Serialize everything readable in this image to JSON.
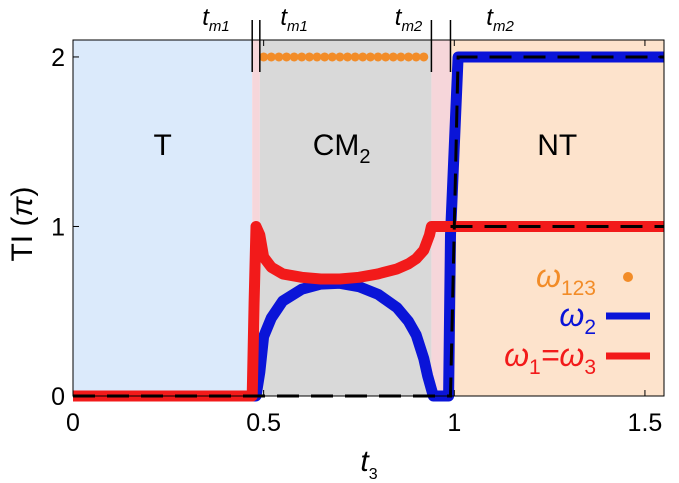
{
  "chart_data": {
    "type": "line",
    "title": "",
    "xlabel": "t",
    "xlabel_sub": "3",
    "ylabel": "TI (",
    "ylabel_sym": "π",
    "ylabel_close": ")",
    "xlim": [
      0,
      1.55
    ],
    "ylim": [
      0,
      2.1
    ],
    "x_ticks": [
      0,
      0.5,
      1,
      1.5
    ],
    "x_tick_labels": [
      "0",
      "0.5",
      "1",
      "1.5"
    ],
    "y_ticks": [
      0,
      1,
      2
    ],
    "y_tick_labels": [
      "0",
      "1",
      "2"
    ],
    "grid": false,
    "legend_position": "bottom-right",
    "regions": [
      {
        "name": "T",
        "label": "T",
        "label_sub": "",
        "x_range": [
          0,
          0.47
        ],
        "color": "#dbeafb"
      },
      {
        "name": "gap1",
        "label": "",
        "label_sub": "",
        "x_range": [
          0.47,
          0.49
        ],
        "color": "#f6d6da"
      },
      {
        "name": "CM2",
        "label": "CM",
        "label_sub": "2",
        "x_range": [
          0.49,
          0.94
        ],
        "color": "#d9d9d9"
      },
      {
        "name": "gap2",
        "label": "",
        "label_sub": "",
        "x_range": [
          0.94,
          0.99
        ],
        "color": "#f6d6da"
      },
      {
        "name": "NT",
        "label": "NT",
        "label_sub": "",
        "x_range": [
          0.99,
          1.55
        ],
        "color": "#fde3cc"
      }
    ],
    "top_labels": [
      {
        "label": "t",
        "sub": "m1",
        "accent": true,
        "x": 0.375
      },
      {
        "label": "t",
        "sub": "m1",
        "accent": false,
        "x": 0.58
      },
      {
        "label": "t",
        "sub": "m2",
        "accent": false,
        "x": 0.88
      },
      {
        "label": "t",
        "sub": "m2",
        "accent": true,
        "x": 1.12
      }
    ],
    "top_markers": [
      0.47,
      0.49,
      0.94,
      0.99
    ],
    "series": [
      {
        "name": "ω",
        "name_sub": "123",
        "style": "dots",
        "color": "#f28c28",
        "x": [
          0.5,
          0.52,
          0.54,
          0.56,
          0.58,
          0.6,
          0.62,
          0.64,
          0.66,
          0.68,
          0.7,
          0.72,
          0.74,
          0.76,
          0.78,
          0.8,
          0.82,
          0.84,
          0.86,
          0.88,
          0.9,
          0.92
        ],
        "y": [
          2,
          2,
          2,
          2,
          2,
          2,
          2,
          2,
          2,
          2,
          2,
          2,
          2,
          2,
          2,
          2,
          2,
          2,
          2,
          2,
          2,
          2
        ]
      },
      {
        "name": "ω",
        "name_sub": "2",
        "style": "line",
        "color": "#0a14d8",
        "x": [
          0,
          0.47,
          0.48,
          0.49,
          0.5,
          0.52,
          0.55,
          0.6,
          0.65,
          0.7,
          0.75,
          0.8,
          0.85,
          0.88,
          0.9,
          0.92,
          0.93,
          0.94,
          0.945,
          0.985,
          0.99,
          1.01,
          1.55
        ],
        "y": [
          0,
          0,
          0,
          0.14,
          0.35,
          0.46,
          0.56,
          0.63,
          0.66,
          0.665,
          0.645,
          0.6,
          0.52,
          0.44,
          0.36,
          0.22,
          0.12,
          0.04,
          0,
          0,
          0.95,
          2,
          2
        ]
      },
      {
        "name": "ω",
        "name_sub": "1",
        "name_suffix": "=ω",
        "name_suffix_sub": "3",
        "style": "line",
        "color": "#f21a1a",
        "x": [
          0,
          0.47,
          0.475,
          0.48,
          0.49,
          0.5,
          0.52,
          0.55,
          0.6,
          0.65,
          0.7,
          0.75,
          0.8,
          0.85,
          0.88,
          0.9,
          0.92,
          0.935,
          0.94,
          0.945,
          1.55
        ],
        "y": [
          0,
          0,
          0.55,
          1.0,
          0.95,
          0.82,
          0.76,
          0.72,
          0.7,
          0.69,
          0.69,
          0.7,
          0.72,
          0.75,
          0.78,
          0.81,
          0.86,
          0.95,
          1.0,
          1.0,
          1.0
        ]
      },
      {
        "name": "",
        "style": "dashed",
        "color": "#000000",
        "x": [
          0,
          0.94,
          0.99,
          1.01,
          1.55
        ],
        "y": [
          0,
          0,
          0,
          2,
          2
        ]
      },
      {
        "name": "",
        "style": "dashed",
        "color": "#000000",
        "x": [
          0.99,
          1.55
        ],
        "y": [
          1,
          1
        ]
      }
    ]
  }
}
